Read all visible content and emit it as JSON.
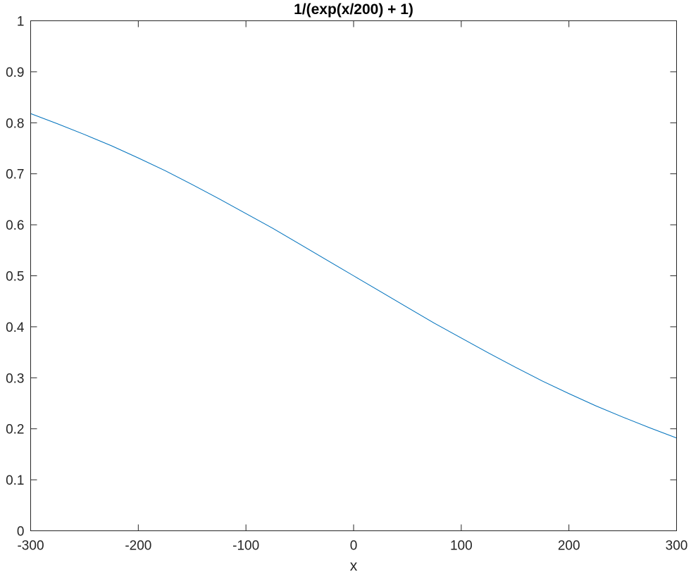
{
  "chart_data": {
    "type": "line",
    "title": "1/(exp(x/200) + 1)",
    "xlabel": "x",
    "ylabel": "",
    "xlim": [
      -300,
      300
    ],
    "ylim": [
      0,
      1
    ],
    "xticks": [
      -300,
      -200,
      -100,
      0,
      100,
      200,
      300
    ],
    "xtick_labels": [
      "-300",
      "-200",
      "-100",
      "0",
      "100",
      "200",
      "300"
    ],
    "yticks": [
      0,
      0.1,
      0.2,
      0.3,
      0.4,
      0.5,
      0.6,
      0.7,
      0.8,
      0.9,
      1
    ],
    "ytick_labels": [
      "0",
      "0.1",
      "0.2",
      "0.3",
      "0.4",
      "0.5",
      "0.6",
      "0.7",
      "0.8",
      "0.9",
      "1"
    ],
    "grid": false,
    "series": [
      {
        "color": "#0072bd",
        "x": [
          -300,
          -275,
          -250,
          -225,
          -200,
          -175,
          -150,
          -125,
          -100,
          -75,
          -50,
          -25,
          0,
          25,
          50,
          75,
          100,
          125,
          150,
          175,
          200,
          225,
          250,
          275,
          300
        ],
        "y": [
          0.818,
          0.798,
          0.777,
          0.755,
          0.731,
          0.706,
          0.679,
          0.651,
          0.622,
          0.593,
          0.562,
          0.531,
          0.5,
          0.469,
          0.438,
          0.407,
          0.378,
          0.349,
          0.321,
          0.294,
          0.269,
          0.245,
          0.223,
          0.202,
          0.182
        ]
      }
    ]
  }
}
